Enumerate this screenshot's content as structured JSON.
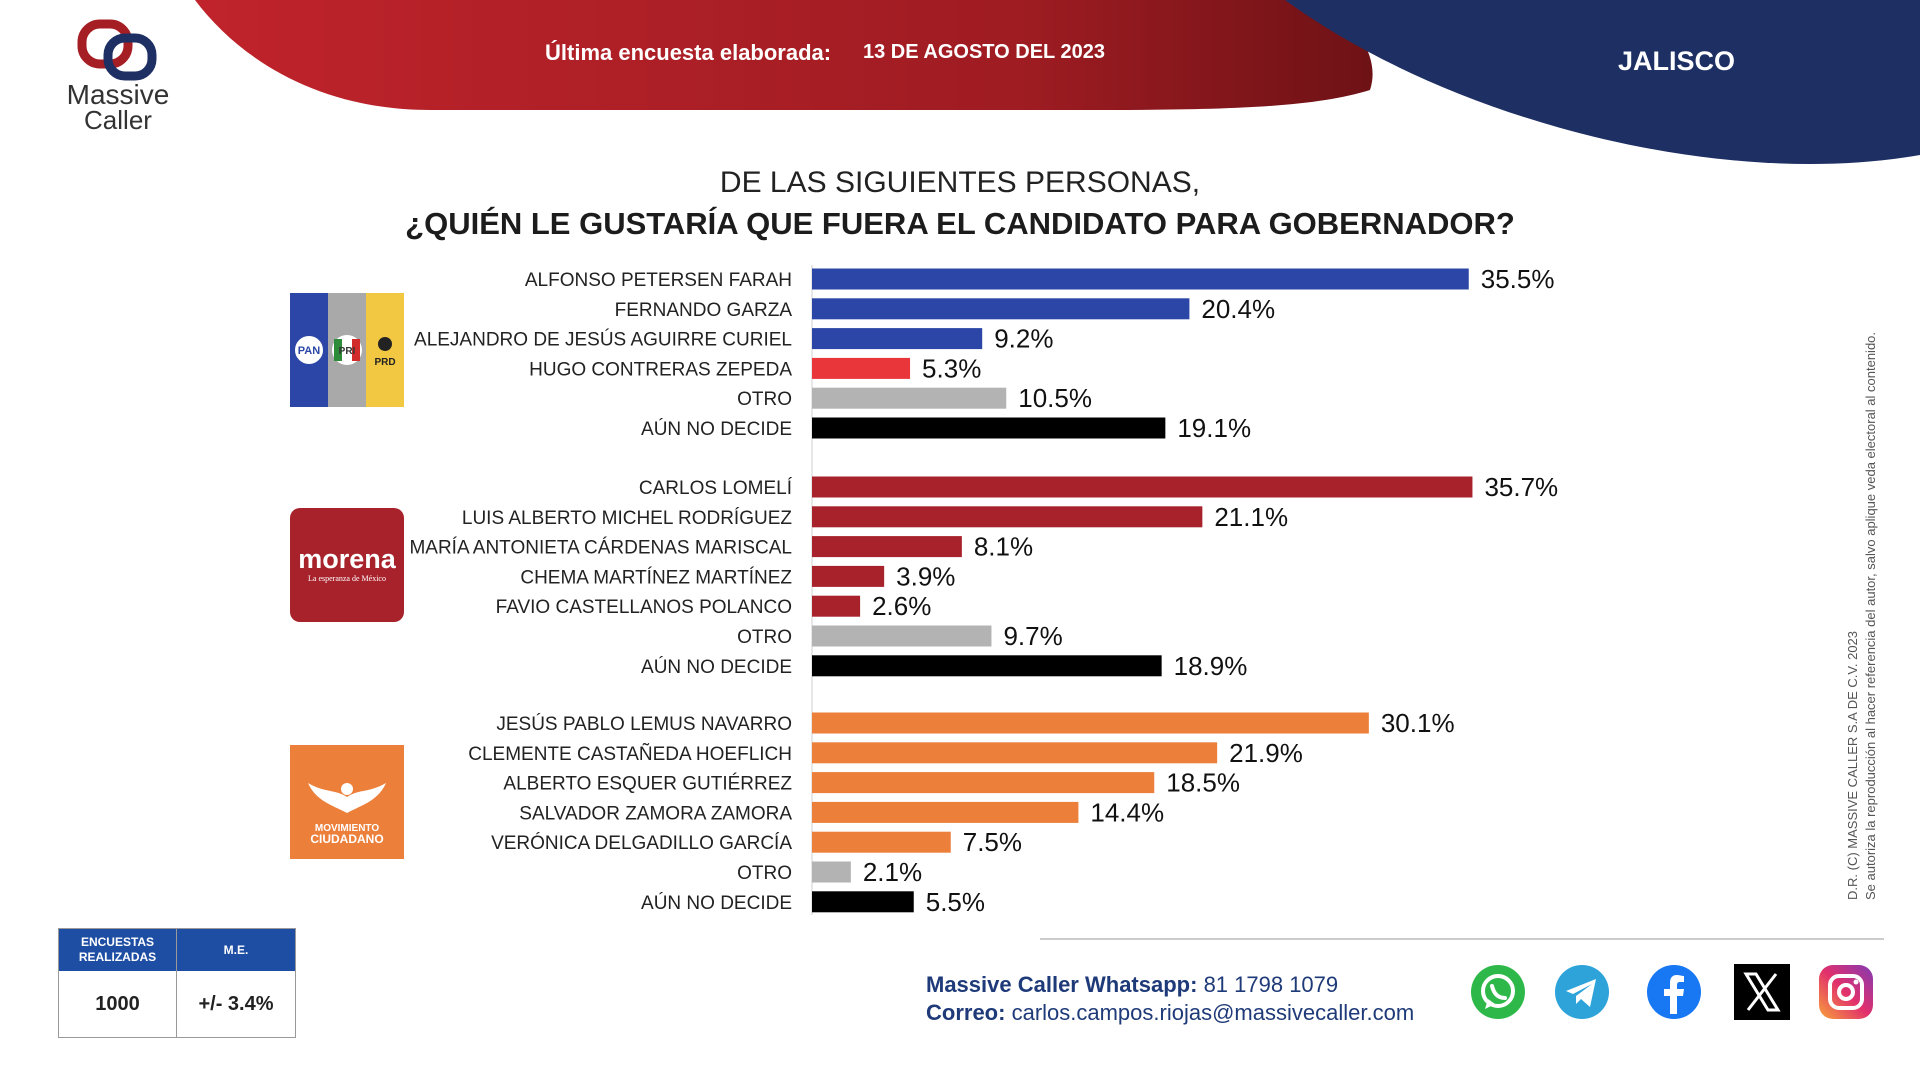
{
  "brand": {
    "line1": "Massive",
    "line2": "Caller"
  },
  "header": {
    "survey_label": "Última encuesta elaborada:",
    "survey_date": "13 DE AGOSTO DEL 2023",
    "state": "JALISCO"
  },
  "question": {
    "line1": "DE LAS SIGUIENTES PERSONAS,",
    "line2": "¿QUIÉN LE GUSTARÍA QUE FUERA EL CANDIDATO PARA GOBERNADOR?"
  },
  "parties": [
    {
      "name": "PAN-PRI-PRD",
      "labels": [
        "PAN",
        "PRI",
        "PRD"
      ]
    },
    {
      "name": "morena",
      "labels": [
        "morena",
        "La esperanza de México"
      ]
    },
    {
      "name": "Movimiento Ciudadano",
      "labels": [
        "MOVIMIENTO",
        "CIUDADANO"
      ]
    }
  ],
  "chart_data": {
    "type": "bar",
    "orientation": "horizontal",
    "value_suffix": "%",
    "groups": [
      {
        "party": "PAN-PRI-PRD",
        "bars": [
          {
            "label": "ALFONSO PETERSEN FARAH",
            "value": 35.5,
            "color": "#2b46a6"
          },
          {
            "label": "FERNANDO GARZA",
            "value": 20.4,
            "color": "#2b46a6"
          },
          {
            "label": "ALEJANDRO DE JESÚS AGUIRRE CURIEL",
            "value": 9.2,
            "color": "#2b46a6"
          },
          {
            "label": "HUGO CONTRERAS ZEPEDA",
            "value": 5.3,
            "color": "#e8363a"
          },
          {
            "label": "OTRO",
            "value": 10.5,
            "color": "#b3b3b3"
          },
          {
            "label": "AÚN NO DECIDE",
            "value": 19.1,
            "color": "#000000"
          }
        ]
      },
      {
        "party": "morena",
        "bars": [
          {
            "label": "CARLOS LOMELÍ",
            "value": 35.7,
            "color": "#a8222c"
          },
          {
            "label": "LUIS ALBERTO MICHEL RODRÍGUEZ",
            "value": 21.1,
            "color": "#a8222c"
          },
          {
            "label": "MARÍA ANTONIETA CÁRDENAS MARISCAL",
            "value": 8.1,
            "color": "#a8222c"
          },
          {
            "label": "CHEMA MARTÍNEZ MARTÍNEZ",
            "value": 3.9,
            "color": "#a8222c"
          },
          {
            "label": "FAVIO CASTELLANOS POLANCO",
            "value": 2.6,
            "color": "#a8222c"
          },
          {
            "label": "OTRO",
            "value": 9.7,
            "color": "#b3b3b3"
          },
          {
            "label": "AÚN NO DECIDE",
            "value": 18.9,
            "color": "#000000"
          }
        ]
      },
      {
        "party": "Movimiento Ciudadano",
        "bars": [
          {
            "label": "JESÚS PABLO LEMUS NAVARRO",
            "value": 30.1,
            "color": "#ec7f3a"
          },
          {
            "label": "CLEMENTE CASTAÑEDA HOEFLICH",
            "value": 21.9,
            "color": "#ec7f3a"
          },
          {
            "label": "ALBERTO ESQUER GUTIÉRREZ",
            "value": 18.5,
            "color": "#ec7f3a"
          },
          {
            "label": "SALVADOR ZAMORA ZAMORA",
            "value": 14.4,
            "color": "#ec7f3a"
          },
          {
            "label": "VERÓNICA DELGADILLO GARCÍA",
            "value": 7.5,
            "color": "#ec7f3a"
          },
          {
            "label": "OTRO",
            "value": 2.1,
            "color": "#b3b3b3"
          },
          {
            "label": "AÚN NO DECIDE",
            "value": 5.5,
            "color": "#000000"
          }
        ]
      }
    ]
  },
  "copyright": {
    "line1": "D.R. (C) MASSIVE CALLER S.A DE C.V. 2023",
    "line2": "Se autoriza la reproducción al hacer referencia del autor, salvo aplique veda electoral al contenido."
  },
  "stats_table": {
    "col1_header": "ENCUESTAS REALIZADAS",
    "col2_header": "M.E.",
    "col1_value": "1000",
    "col2_value": "+/- 3.4%"
  },
  "contact": {
    "whatsapp_label": "Massive Caller Whatsapp:",
    "whatsapp_number": "81 1798 1079",
    "email_label": "Correo:",
    "email": "carlos.campos.riojas@massivecaller.com"
  },
  "social_icons": [
    "whatsapp-icon",
    "telegram-icon",
    "facebook-icon",
    "x-icon",
    "instagram-icon"
  ],
  "colors": {
    "header_red": "#a51e24",
    "header_navy": "#1d2f63",
    "pan_blue": "#2b46a6",
    "morena_red": "#a8222c",
    "mc_orange": "#ec7f3a",
    "table_blue": "#1e4ea3"
  }
}
